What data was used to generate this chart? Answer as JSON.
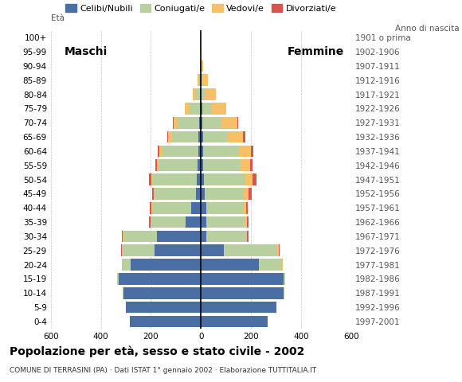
{
  "age_groups": [
    "0-4",
    "5-9",
    "10-14",
    "15-19",
    "20-24",
    "25-29",
    "30-34",
    "35-39",
    "40-44",
    "45-49",
    "50-54",
    "55-59",
    "60-64",
    "65-69",
    "70-74",
    "75-79",
    "80-84",
    "85-89",
    "90-94",
    "95-99",
    "100+"
  ],
  "birth_years": [
    "1997-2001",
    "1992-1996",
    "1987-1991",
    "1982-1986",
    "1977-1981",
    "1972-1976",
    "1967-1971",
    "1962-1966",
    "1957-1961",
    "1952-1956",
    "1947-1951",
    "1942-1946",
    "1937-1941",
    "1932-1936",
    "1927-1931",
    "1922-1926",
    "1917-1921",
    "1912-1916",
    "1907-1911",
    "1902-1906",
    "1901 o prima"
  ],
  "maschi": {
    "celibi": [
      285,
      300,
      310,
      330,
      280,
      185,
      175,
      60,
      40,
      20,
      18,
      14,
      12,
      10,
      8,
      5,
      4,
      2,
      0,
      0,
      0
    ],
    "coniugati": [
      0,
      0,
      2,
      5,
      35,
      130,
      135,
      140,
      155,
      165,
      175,
      155,
      145,
      105,
      85,
      45,
      20,
      8,
      2,
      0,
      0
    ],
    "vedovi": [
      0,
      0,
      0,
      0,
      0,
      2,
      2,
      2,
      2,
      3,
      5,
      8,
      10,
      15,
      15,
      15,
      10,
      5,
      1,
      0,
      0
    ],
    "divorziati": [
      0,
      0,
      0,
      0,
      2,
      3,
      5,
      5,
      8,
      8,
      10,
      5,
      5,
      5,
      5,
      0,
      0,
      0,
      0,
      0,
      0
    ]
  },
  "femmine": {
    "nubili": [
      265,
      300,
      330,
      330,
      230,
      90,
      20,
      20,
      20,
      15,
      12,
      10,
      10,
      8,
      5,
      5,
      3,
      2,
      0,
      0,
      0
    ],
    "coniugate": [
      0,
      0,
      2,
      5,
      95,
      215,
      160,
      155,
      150,
      155,
      165,
      145,
      140,
      100,
      75,
      40,
      15,
      5,
      2,
      0,
      0
    ],
    "vedove": [
      0,
      0,
      0,
      0,
      2,
      5,
      5,
      8,
      10,
      20,
      30,
      40,
      50,
      60,
      65,
      55,
      40,
      20,
      8,
      2,
      0
    ],
    "divorziate": [
      0,
      0,
      0,
      0,
      0,
      3,
      5,
      8,
      8,
      12,
      15,
      10,
      8,
      10,
      5,
      0,
      0,
      0,
      0,
      0,
      0
    ]
  },
  "colors": {
    "celibi": "#4a6fa5",
    "coniugati": "#b8cfa0",
    "vedovi": "#f5c066",
    "divorziati": "#d9534f"
  },
  "xlim": 600,
  "title": "Popolazione per età, sesso e stato civile - 2002",
  "subtitle": "COMUNE DI TERRASINI (PA) · Dati ISTAT 1° gennaio 2002 · Elaborazione TUTTITALIA.IT",
  "legend_labels": [
    "Celibi/Nubili",
    "Coniugati/e",
    "Vedovi/e",
    "Divorziati/e"
  ],
  "label_eta": "Età",
  "label_maschi": "Maschi",
  "label_femmine": "Femmine",
  "label_anno": "Anno di nascita",
  "bg_color": "#ffffff",
  "xticks": [
    600,
    400,
    200,
    0,
    200,
    400,
    600
  ],
  "grid_color": "#aaaaaa",
  "title_fontsize": 10,
  "subtitle_fontsize": 6.5,
  "tick_fontsize": 7.5,
  "legend_fontsize": 8
}
